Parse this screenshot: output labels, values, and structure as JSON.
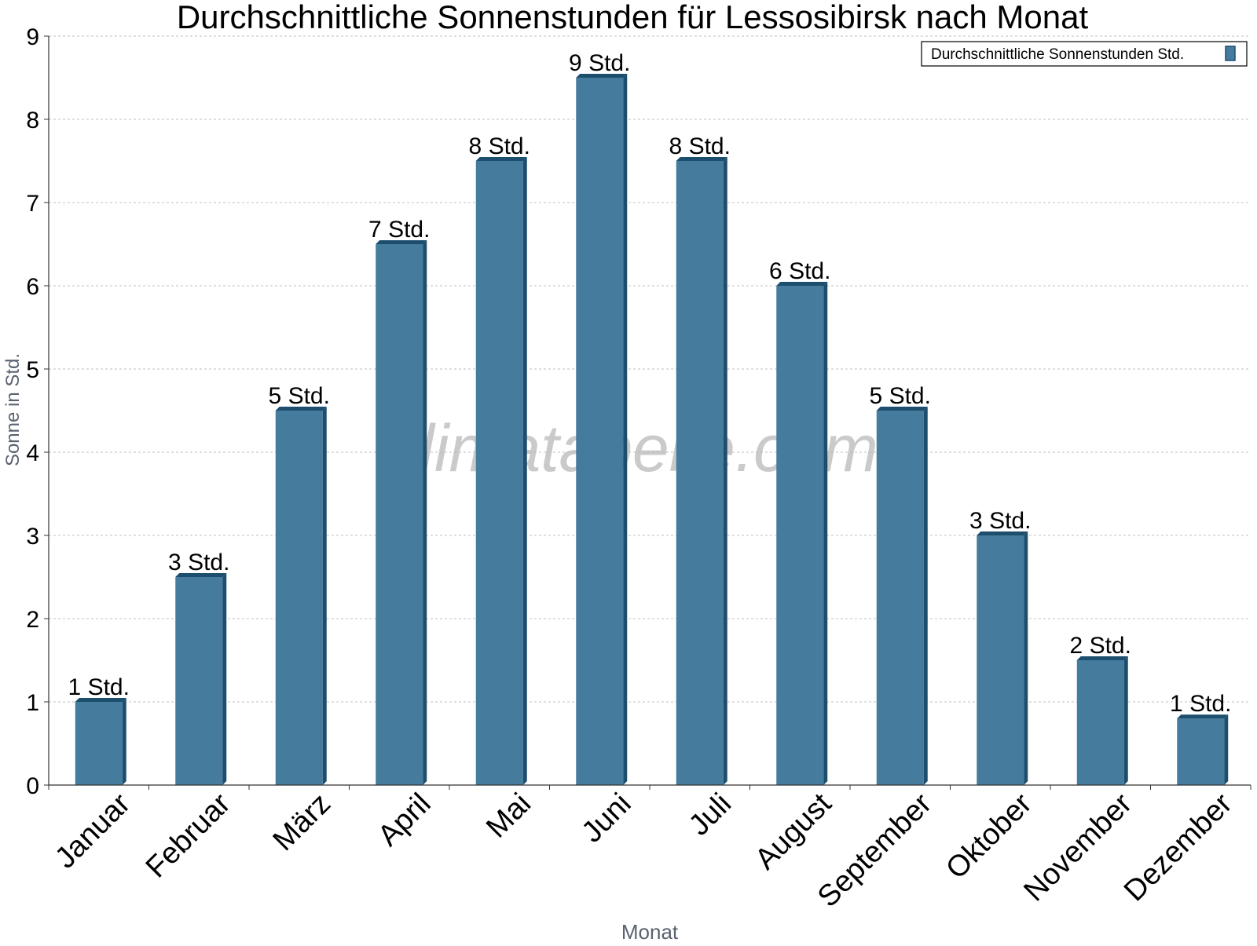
{
  "chart_data": {
    "type": "bar",
    "title": "Durchschnittliche Sonnenstunden für Lessosibirsk nach Monat",
    "xlabel": "Monat",
    "ylabel": "Sonne in Std.",
    "ylim": [
      0,
      9
    ],
    "yticks": [
      0,
      1,
      2,
      3,
      4,
      5,
      6,
      7,
      8,
      9
    ],
    "grid": true,
    "legend_position": "top-right",
    "categories": [
      "Januar",
      "Februar",
      "März",
      "April",
      "Mai",
      "Juni",
      "Juli",
      "August",
      "September",
      "Oktober",
      "November",
      "Dezember"
    ],
    "series": [
      {
        "name": "Durchschnittliche Sonnenstunden Std.",
        "values": [
          1.0,
          2.5,
          4.5,
          6.5,
          7.5,
          8.5,
          7.5,
          6.0,
          4.5,
          3.0,
          1.5,
          0.8
        ],
        "data_labels": [
          "1 Std.",
          "3 Std.",
          "5 Std.",
          "7 Std.",
          "8 Std.",
          "9 Std.",
          "8 Std.",
          "6 Std.",
          "5 Std.",
          "3 Std.",
          "2 Std.",
          "1 Std."
        ],
        "color": "#457b9d",
        "edge_color": "#1d4e6e"
      }
    ],
    "watermark": "klimatabelle.com"
  }
}
